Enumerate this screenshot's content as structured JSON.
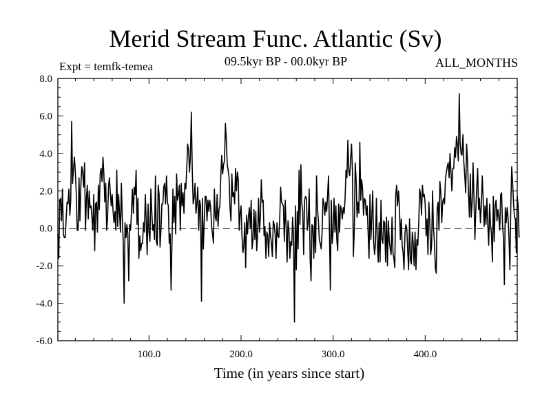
{
  "chart_data": {
    "type": "line",
    "title": "Merid Stream Func. Atlantic (Sv)",
    "subtitle": "09.5kyr BP - 00.0kyr BP",
    "experiment": "Expt = temfk-temea",
    "period": "ALL_MONTHS",
    "xlabel": "Time (in years since start)",
    "ylabel": "",
    "xlim": [
      1,
      500
    ],
    "ylim": [
      -6.0,
      8.0
    ],
    "xticks": [
      "100.0",
      "200.0",
      "300.0",
      "400.0"
    ],
    "xtick_values": [
      100,
      200,
      300,
      400
    ],
    "yticks": [
      "-6.0",
      "-4.0",
      "-2.0",
      "0.0",
      "2.0",
      "4.0",
      "6.0",
      "8.0"
    ],
    "ytick_values": [
      -6,
      -4,
      -2,
      0,
      2,
      4,
      6,
      8
    ],
    "reference_line": 0.0,
    "series": [
      {
        "name": "Merid Stream Func. Atlantic",
        "x_start": 1,
        "x_step": 1,
        "values": [
          -0.3,
          -1.6,
          1.5,
          1.6,
          0.4,
          2.1,
          -0.3,
          -0.5,
          -0.5,
          0.5,
          1.4,
          1.3,
          2.1,
          0.7,
          1.5,
          5.7,
          2.4,
          3.2,
          3.8,
          3.0,
          1.9,
          -0.1,
          -0.1,
          2.7,
          0.4,
          2.3,
          3.3,
          3.0,
          2.2,
          3.5,
          -0.1,
          1.6,
          2.3,
          0.5,
          2.0,
          1.1,
          1.2,
          0.6,
          -0.1,
          1.8,
          -1.2,
          1.3,
          1.4,
          -0.2,
          2.3,
          1.0,
          2.9,
          3.2,
          2.5,
          3.8,
          2.9,
          1.4,
          2.4,
          -0.1,
          0.5,
          2.2,
          2.7,
          1.9,
          1.2,
          1.8,
          0.9,
          0.3,
          0.9,
          -0.1,
          3.1,
          0.1,
          1.8,
          0.8,
          -0.2,
          2.4,
          0.5,
          -0.7,
          -4.0,
          0.3,
          -0.5,
          0.2,
          -0.3,
          -2.8,
          0.2,
          -0.1,
          0.9,
          2.1,
          0.8,
          2.2,
          1.8,
          3.1,
          0.2,
          1.6,
          -1.6,
          -0.4,
          -1.2,
          -0.8,
          -0.8,
          0.3,
          -0.2,
          1.8,
          0.4,
          -1.4,
          1.3,
          -0.2,
          -0.7,
          2.1,
          0.9,
          -0.1,
          0.2,
          -0.6,
          2.8,
          -0.7,
          -0.9,
          2.3,
          1.8,
          -1.0,
          -0.1,
          1.3,
          1.3,
          2.2,
          2.4,
          1.3,
          2.8,
          1.4,
          1.2,
          -0.8,
          -0.3,
          -3.3,
          -0.7,
          2.1,
          0.3,
          1.7,
          -0.3,
          2.9,
          1.5,
          1.8,
          2.3,
          -0.1,
          2.4,
          1.2,
          1.9,
          0.8,
          2.4,
          2.1,
          3.2,
          4.5,
          4.2,
          3.0,
          3.9,
          6.2,
          3.1,
          1.3,
          1.6,
          2.4,
          0.8,
          1.3,
          2.2,
          -0.1,
          1.5,
          1.2,
          -3.9,
          1.6,
          -1.1,
          0.3,
          1.7,
          1.7,
          0.4,
          1.5,
          0.9,
          1.5,
          1.1,
          0.1,
          -0.3,
          -0.8,
          2.1,
          0.6,
          0.4,
          1.8,
          0.1,
          1.0,
          1.2,
          2.8,
          3.9,
          2.9,
          3.4,
          3.6,
          5.6,
          4.7,
          3.4,
          3.1,
          2.7,
          1.1,
          0.4,
          2.9,
          1.7,
          1.9,
          1.3,
          3.2,
          2.0,
          3.0,
          2.6,
          -0.1,
          0.8,
          1.2,
          -0.4,
          -1.3,
          -0.9,
          0.3,
          -2.1,
          0.7,
          -0.3,
          0.6,
          1.1,
          0.0,
          1.5,
          -1.1,
          -0.6,
          1.0,
          -0.6,
          0.9,
          -1.2,
          -0.3,
          1.6,
          -0.2,
          0.6,
          2.6,
          1.4,
          1.5,
          -0.4,
          0.1,
          -1.6,
          -0.2,
          -0.4,
          -1.5,
          0.3,
          -0.4,
          -0.8,
          -1.5,
          0.4,
          0.2,
          -0.3,
          -1.6,
          0.3,
          -0.4,
          -0.5,
          0.5,
          2.2,
          1.4,
          1.3,
          1.2,
          -0.7,
          1.5,
          0.0,
          -1.8,
          0.4,
          -0.1,
          -1.6,
          -0.7,
          -0.9,
          0.6,
          -0.5,
          -5.0,
          1.2,
          -2.2,
          0.9,
          -1.1,
          3.1,
          0.2,
          3.4,
          1.3,
          0.9,
          -1.4,
          1.5,
          1.7,
          1.6,
          -0.1,
          0.4,
          2.1,
          -1.6,
          -2.8,
          0.2,
          0.1,
          -1.6,
          0.6,
          -1.3,
          2.8,
          1.1,
          0.4,
          -0.6,
          -0.8,
          -1.1,
          -0.2,
          1.6,
          1.3,
          0.7,
          1.4,
          0.9,
          1.8,
          2.8,
          -0.2,
          -3.3,
          1.5,
          -0.8,
          -0.1,
          1.6,
          -0.2,
          1.2,
          -0.6,
          -1.2,
          1.3,
          -0.2,
          1.2,
          1.0,
          0.5,
          1.1,
          0.8,
          1.6,
          3.1,
          2.7,
          4.7,
          3.1,
          2.8,
          3.7,
          4.5,
          3.0,
          -1.5,
          -0.1,
          3.5,
          2.6,
          0.6,
          1.4,
          0.8,
          4.6,
          1.5,
          2.6,
          2.1,
          0.7,
          1.6,
          1.5,
          0.7,
          1.2,
          -0.2,
          -1.6,
          1.8,
          -0.6,
          0.6,
          2.0,
          -0.7,
          -1.4,
          -0.8,
          1.6,
          -0.8,
          -1.8,
          0.3,
          -1.8,
          1.5,
          -0.6,
          -0.8,
          0.4,
          0.3,
          -1.8,
          0.6,
          -2.0,
          0.4,
          -0.7,
          -1.1,
          -1.4,
          0.6,
          -1.3,
          -1.6,
          -2.1,
          1.8,
          2.3,
          1.2,
          2.0,
          1.2,
          -0.6,
          0.5,
          -0.9,
          -1.3,
          -2.2,
          -0.3,
          0.2,
          0.0,
          -1.2,
          -2.2,
          0.5,
          -1.7,
          -1.9,
          -0.2,
          -0.8,
          -2.0,
          -0.2,
          -2.2,
          -0.6,
          -0.9,
          0.3,
          2.1,
          1.8,
          0.7,
          2.3,
          1.7,
          1.8,
          1.3,
          -0.4,
          0.5,
          -1.4,
          1.4,
          0.3,
          -1.4,
          -0.9,
          2.0,
          0.0,
          -0.7,
          -2.1,
          -2.4,
          1.0,
          1.4,
          -0.1,
          2.5,
          1.9,
          0.3,
          1.4,
          1.6,
          1.3,
          2.6,
          3.0,
          3.3,
          3.5,
          2.7,
          4.0,
          3.0,
          2.0,
          3.2,
          3.2,
          4.3,
          3.8,
          4.9,
          4.5,
          3.6,
          7.2,
          4.5,
          4.0,
          3.9,
          5.0,
          3.5,
          2.8,
          1.9,
          4.5,
          3.6,
          1.9,
          0.6,
          2.9,
          0.6,
          1.4,
          3.5,
          1.6,
          -0.6,
          1.0,
          2.2,
          3.2,
          1.0,
          1.6,
          0.3,
          1.3,
          2.8,
          1.5,
          0.1,
          1.2,
          0.2,
          1.6,
          0.2,
          -0.9,
          1.3,
          0.2,
          -0.3,
          -1.8,
          1.7,
          -0.7,
          1.2,
          1.5,
          0.4,
          1.0,
          0.6,
          -0.1,
          1.8,
          1.9,
          0.2,
          -0.5,
          -3.0,
          1.1,
          0.3,
          1.1,
          0.6,
          -0.5,
          -2.2,
          1.2,
          3.3,
          2.4,
          1.3,
          0.6,
          0.5,
          -1.3,
          1.7,
          1.2,
          -0.5
        ]
      }
    ]
  }
}
